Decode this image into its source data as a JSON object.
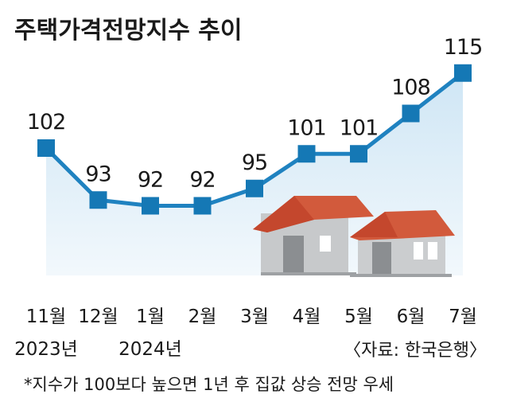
{
  "title": "주택가격전망지수 추이",
  "chart_data": {
    "type": "area",
    "title": "주택가격전망지수 추이",
    "categories": [
      "11월",
      "12월",
      "1월",
      "2월",
      "3월",
      "4월",
      "5월",
      "6월",
      "7월"
    ],
    "years": [
      {
        "label": "2023년",
        "index": 0
      },
      {
        "label": "2024년",
        "index": 2
      }
    ],
    "series": [
      {
        "values": [
          102,
          93,
          92,
          92,
          95,
          101,
          101,
          108,
          115
        ]
      }
    ],
    "ylim": [
      80,
      120
    ],
    "grid": false,
    "colors": {
      "line": "#1f82c0",
      "marker": "#1578b5",
      "fill_top": "#cfe6f5",
      "fill_bottom": "#f2f8fc"
    }
  },
  "source": "〈자료: 한국은행〉",
  "footnote": "*지수가 100보다 높으면 1년 후 집값 상승 전망 우세"
}
